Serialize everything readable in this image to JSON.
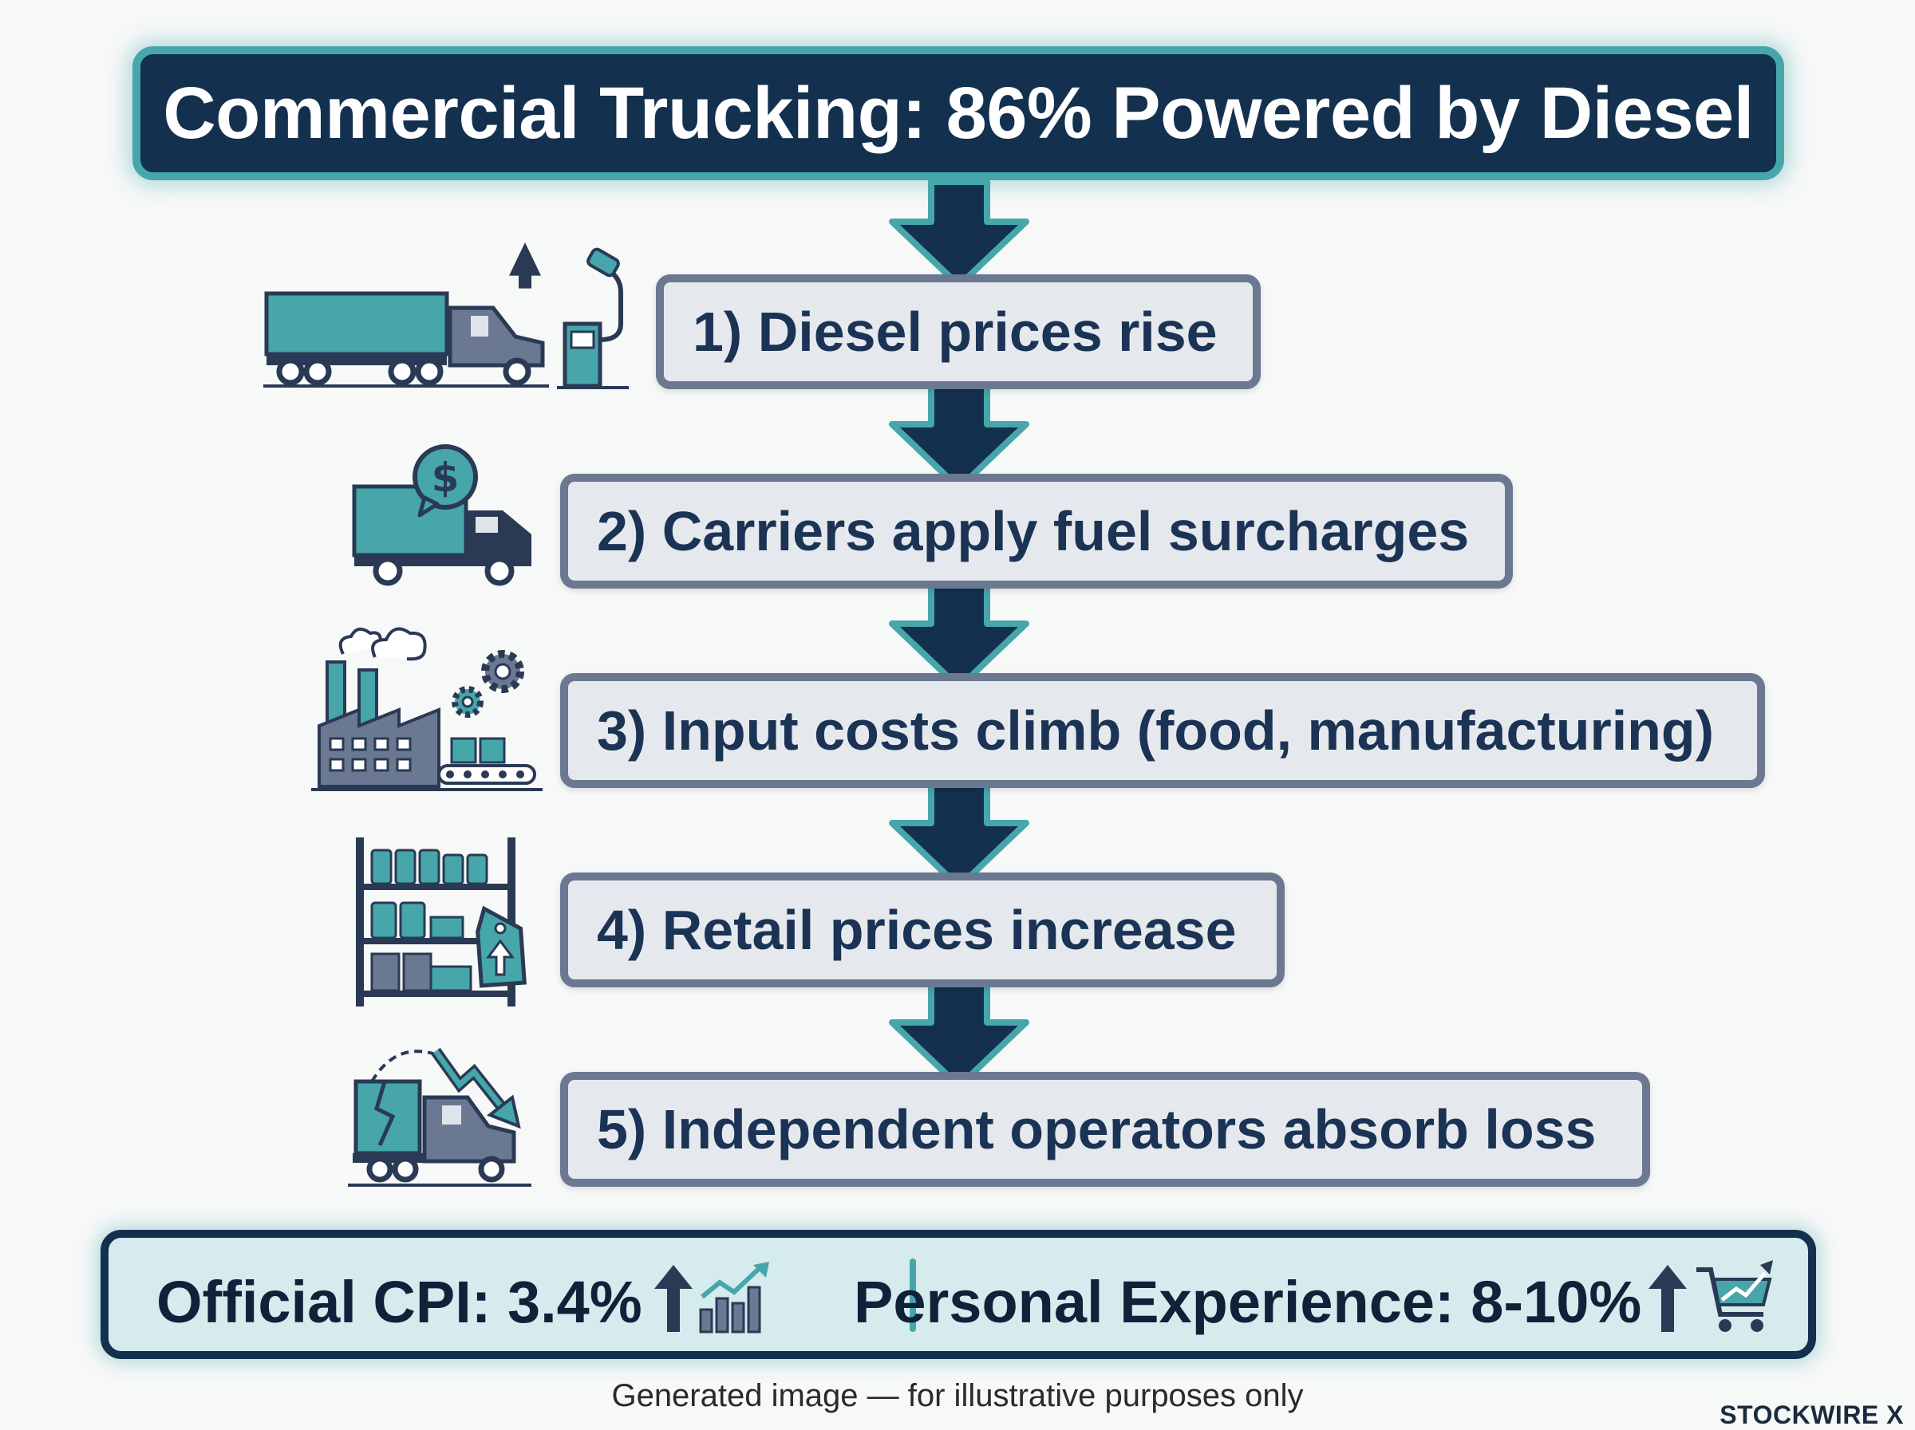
{
  "title": "Commercial Trucking: 86% Powered by Diesel",
  "steps": [
    {
      "label": "1) Diesel prices rise",
      "icon": "truck-fuel-pump-icon"
    },
    {
      "label": "2) Carriers apply fuel surcharges",
      "icon": "delivery-truck-dollar-icon"
    },
    {
      "label": "3) Input costs climb (food, manufacturing)",
      "icon": "factory-gears-icon"
    },
    {
      "label": "4) Retail prices increase",
      "icon": "store-shelves-price-tag-icon"
    },
    {
      "label": "5) Independent operators absorb loss",
      "icon": "truck-declining-arrow-icon"
    }
  ],
  "summary": {
    "official": "Official CPI: 3.4%",
    "personal": "Personal Experience: 8-10%"
  },
  "footnote": "Generated image — for illustrative purposes only",
  "brand": "STOCKWIRE X",
  "colors": {
    "navy": "#14304f",
    "teal": "#46a6aa",
    "step_fill": "#e5e9ee",
    "step_border": "#6b7891",
    "summary_fill": "#d5ebed"
  }
}
